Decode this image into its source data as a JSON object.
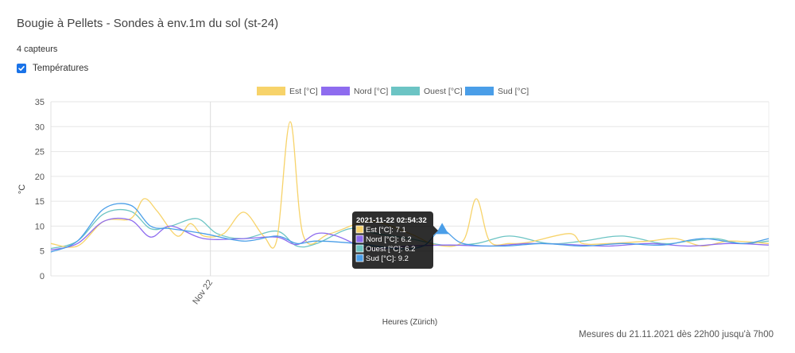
{
  "title": "Bougie à Pellets - Sondes à env.1m du sol (st-24)",
  "sensor_count": "4 capteurs",
  "toggle_label": "Températures",
  "footer": "Mesures du 21.11.2021 dès 22h00 jusqu'à 7h00",
  "colors": {
    "Est": "#f7d36a",
    "Nord": "#8e6cef",
    "Ouest": "#6cc4c4",
    "Sud": "#4a9ee8"
  },
  "tooltip": {
    "time": "2021-11-22 02:54:32",
    "lines": [
      "Est [°C]: 7.1",
      "Nord [°C]: 6.2",
      "Ouest [°C]: 6.2",
      "Sud [°C]: 9.2"
    ]
  },
  "chart_data": {
    "type": "line",
    "ylabel": "°C",
    "xlabel": "Heures (Zürich)",
    "ylim": [
      0,
      35
    ],
    "yticks": [
      "0",
      "5",
      "10",
      "15",
      "20",
      "25",
      "30",
      "35"
    ],
    "xtick_label": "Nov 22",
    "xlim": [
      "2021-11-21 22:00",
      "2021-11-22 07:00"
    ],
    "grid": true,
    "legend": "top",
    "series": [
      {
        "name": "Est [°C]",
        "x": [
          "2021-11-21 22:00",
          "2021-11-21 22:20",
          "2021-11-21 22:40",
          "2021-11-21 23:00",
          "2021-11-21 23:10",
          "2021-11-21 23:20",
          "2021-11-21 23:35",
          "2021-11-21 23:45",
          "2021-11-21 23:55",
          "2021-11-22 00:10",
          "2021-11-22 00:25",
          "2021-11-22 00:40",
          "2021-11-22 00:50",
          "2021-11-22 01:00",
          "2021-11-22 01:10",
          "2021-11-22 01:30",
          "2021-11-22 02:00",
          "2021-11-22 02:30",
          "2021-11-22 02:50",
          "2021-11-22 03:10",
          "2021-11-22 03:20",
          "2021-11-22 03:30",
          "2021-11-22 03:45",
          "2021-11-22 04:00",
          "2021-11-22 04:30",
          "2021-11-22 04:40",
          "2021-11-22 05:00",
          "2021-11-22 05:30",
          "2021-11-22 05:50",
          "2021-11-22 06:10",
          "2021-11-22 06:30",
          "2021-11-22 07:00"
        ],
        "values": [
          6.5,
          6.0,
          11.0,
          11.5,
          15.5,
          13.0,
          8.0,
          10.5,
          8.0,
          8.5,
          12.8,
          8.0,
          7.3,
          31.0,
          8.0,
          8.5,
          11.0,
          8.5,
          6.2,
          7.0,
          15.5,
          7.0,
          6.5,
          6.8,
          8.5,
          6.5,
          6.5,
          7.0,
          7.5,
          6.0,
          7.0,
          6.5
        ]
      },
      {
        "name": "Nord [°C]",
        "x": [
          "2021-11-21 22:00",
          "2021-11-21 22:20",
          "2021-11-21 22:40",
          "2021-11-21 23:00",
          "2021-11-21 23:15",
          "2021-11-21 23:30",
          "2021-11-21 23:55",
          "2021-11-22 00:25",
          "2021-11-22 00:50",
          "2021-11-22 01:05",
          "2021-11-22 01:20",
          "2021-11-22 01:35",
          "2021-11-22 02:00",
          "2021-11-22 02:30",
          "2021-11-22 03:00",
          "2021-11-22 03:30",
          "2021-11-22 04:00",
          "2021-11-22 04:30",
          "2021-11-22 05:00",
          "2021-11-22 05:30",
          "2021-11-22 06:00",
          "2021-11-22 06:30",
          "2021-11-22 07:00"
        ],
        "values": [
          5.2,
          6.5,
          11.0,
          11.2,
          7.8,
          10.0,
          7.5,
          7.5,
          7.8,
          6.3,
          8.5,
          8.0,
          5.5,
          6.0,
          6.2,
          6.0,
          6.5,
          6.3,
          6.0,
          6.5,
          6.0,
          6.5,
          6.2
        ]
      },
      {
        "name": "Ouest [°C]",
        "x": [
          "2021-11-21 22:00",
          "2021-11-21 22:20",
          "2021-11-21 22:40",
          "2021-11-21 23:00",
          "2021-11-21 23:15",
          "2021-11-21 23:30",
          "2021-11-21 23:50",
          "2021-11-22 00:05",
          "2021-11-22 00:25",
          "2021-11-22 00:50",
          "2021-11-22 01:05",
          "2021-11-22 01:20",
          "2021-11-22 01:45",
          "2021-11-22 02:05",
          "2021-11-22 02:30",
          "2021-11-22 02:55",
          "2021-11-22 03:20",
          "2021-11-22 03:45",
          "2021-11-22 04:15",
          "2021-11-22 04:40",
          "2021-11-22 05:10",
          "2021-11-22 05:40",
          "2021-11-22 06:00",
          "2021-11-22 06:20",
          "2021-11-22 06:40",
          "2021-11-22 07:00"
        ],
        "values": [
          5.5,
          7.0,
          12.5,
          13.0,
          9.5,
          10.0,
          11.5,
          8.5,
          7.5,
          9.0,
          6.0,
          6.5,
          9.5,
          8.5,
          7.5,
          6.2,
          6.5,
          8.0,
          6.5,
          7.0,
          8.0,
          6.5,
          7.0,
          7.5,
          6.5,
          7.0
        ]
      },
      {
        "name": "Sud [°C]",
        "x": [
          "2021-11-21 22:00",
          "2021-11-21 22:20",
          "2021-11-21 22:40",
          "2021-11-21 23:00",
          "2021-11-21 23:15",
          "2021-11-21 23:30",
          "2021-11-21 23:55",
          "2021-11-22 00:25",
          "2021-11-22 00:50",
          "2021-11-22 01:05",
          "2021-11-22 01:20",
          "2021-11-22 01:50",
          "2021-11-22 02:20",
          "2021-11-22 02:40",
          "2021-11-22 02:54",
          "2021-11-22 03:10",
          "2021-11-22 03:40",
          "2021-11-22 04:10",
          "2021-11-22 04:40",
          "2021-11-22 05:10",
          "2021-11-22 05:40",
          "2021-11-22 06:10",
          "2021-11-22 06:40",
          "2021-11-22 07:00"
        ],
        "values": [
          4.8,
          7.0,
          13.5,
          14.2,
          10.0,
          9.5,
          8.5,
          7.0,
          8.0,
          6.5,
          7.0,
          6.5,
          5.5,
          6.0,
          9.2,
          6.5,
          6.0,
          6.5,
          6.0,
          6.5,
          6.2,
          7.5,
          6.5,
          7.5
        ]
      }
    ]
  }
}
